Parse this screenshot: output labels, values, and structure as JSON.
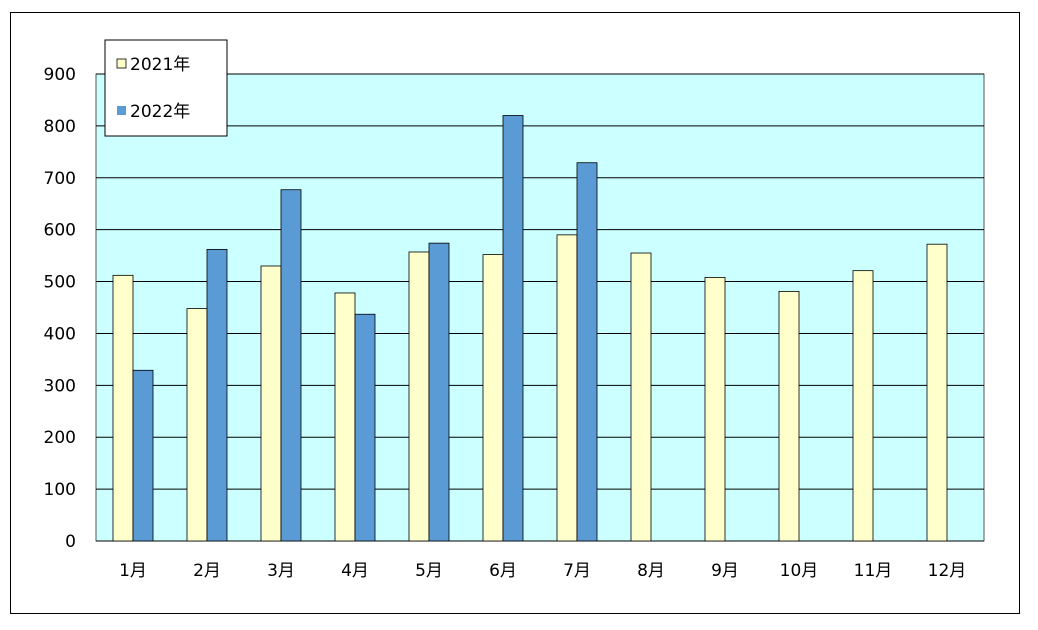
{
  "chart_data": {
    "type": "bar",
    "categories": [
      "1月",
      "2月",
      "3月",
      "4月",
      "5月",
      "6月",
      "7月",
      "8月",
      "9月",
      "10月",
      "11月",
      "12月"
    ],
    "series": [
      {
        "name": "2021年",
        "color": "#ffffcc",
        "values": [
          512,
          448,
          530,
          478,
          557,
          552,
          590,
          555,
          508,
          481,
          521,
          572
        ]
      },
      {
        "name": "2022年",
        "color": "#5b9bd5",
        "values": [
          329,
          562,
          677,
          437,
          574,
          820,
          729,
          null,
          null,
          null,
          null,
          null
        ]
      }
    ],
    "ylim": [
      0,
      900
    ],
    "yticks": [
      0,
      100,
      200,
      300,
      400,
      500,
      600,
      700,
      800,
      900
    ],
    "grid": true,
    "plot_background": "#ccffff",
    "legend_position": "top-left"
  }
}
